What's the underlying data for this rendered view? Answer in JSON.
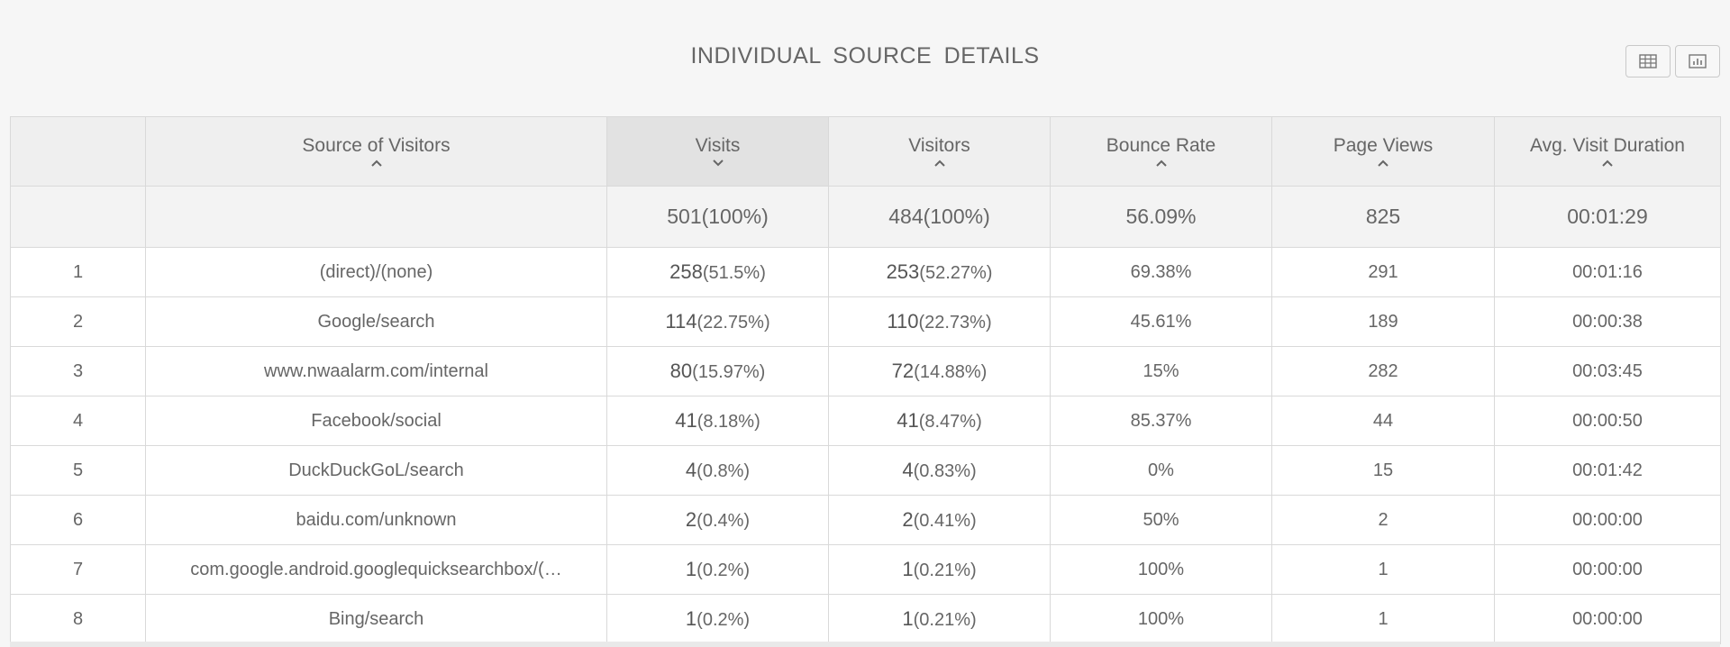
{
  "title": "INDIVIDUAL SOURCE DETAILS",
  "view_toggle": [
    {
      "name": "table-view-button",
      "icon": "table-icon"
    },
    {
      "name": "chart-view-button",
      "icon": "bar-chart-icon"
    }
  ],
  "columns": [
    {
      "label": "",
      "sort": "none"
    },
    {
      "label": "Source of Visitors",
      "sort": "up"
    },
    {
      "label": "Visits",
      "sort": "down"
    },
    {
      "label": "Visitors",
      "sort": "up"
    },
    {
      "label": "Bounce Rate",
      "sort": "up"
    },
    {
      "label": "Page Views",
      "sort": "up"
    },
    {
      "label": "Avg. Visit Duration",
      "sort": "up"
    }
  ],
  "summary": {
    "visits": "501(100%)",
    "visitors": "484(100%)",
    "bounce_rate": "56.09%",
    "page_views": "825",
    "avg_duration": "00:01:29"
  },
  "rows": [
    {
      "idx": "1",
      "source": "(direct)/(none)",
      "visits_n": "258",
      "visits_p": "(51.5%)",
      "visitors_n": "253",
      "visitors_p": "(52.27%)",
      "bounce": "69.38%",
      "pageviews": "291",
      "duration": "00:01:16"
    },
    {
      "idx": "2",
      "source": "Google/search",
      "visits_n": "114",
      "visits_p": "(22.75%)",
      "visitors_n": "110",
      "visitors_p": "(22.73%)",
      "bounce": "45.61%",
      "pageviews": "189",
      "duration": "00:00:38"
    },
    {
      "idx": "3",
      "source": "www.nwaalarm.com/internal",
      "visits_n": "80",
      "visits_p": "(15.97%)",
      "visitors_n": "72",
      "visitors_p": "(14.88%)",
      "bounce": "15%",
      "pageviews": "282",
      "duration": "00:03:45"
    },
    {
      "idx": "4",
      "source": "Facebook/social",
      "visits_n": "41",
      "visits_p": "(8.18%)",
      "visitors_n": "41",
      "visitors_p": "(8.47%)",
      "bounce": "85.37%",
      "pageviews": "44",
      "duration": "00:00:50"
    },
    {
      "idx": "5",
      "source": "DuckDuckGoL/search",
      "visits_n": "4",
      "visits_p": "(0.8%)",
      "visitors_n": "4",
      "visitors_p": "(0.83%)",
      "bounce": "0%",
      "pageviews": "15",
      "duration": "00:01:42"
    },
    {
      "idx": "6",
      "source": "baidu.com/unknown",
      "visits_n": "2",
      "visits_p": "(0.4%)",
      "visitors_n": "2",
      "visitors_p": "(0.41%)",
      "bounce": "50%",
      "pageviews": "2",
      "duration": "00:00:00"
    },
    {
      "idx": "7",
      "source": "com.google.android.googlequicksearchbox/(…",
      "visits_n": "1",
      "visits_p": "(0.2%)",
      "visitors_n": "1",
      "visitors_p": "(0.21%)",
      "bounce": "100%",
      "pageviews": "1",
      "duration": "00:00:00"
    },
    {
      "idx": "8",
      "source": "Bing/search",
      "visits_n": "1",
      "visits_p": "(0.2%)",
      "visitors_n": "1",
      "visitors_p": "(0.21%)",
      "bounce": "100%",
      "pageviews": "1",
      "duration": "00:00:00"
    }
  ]
}
